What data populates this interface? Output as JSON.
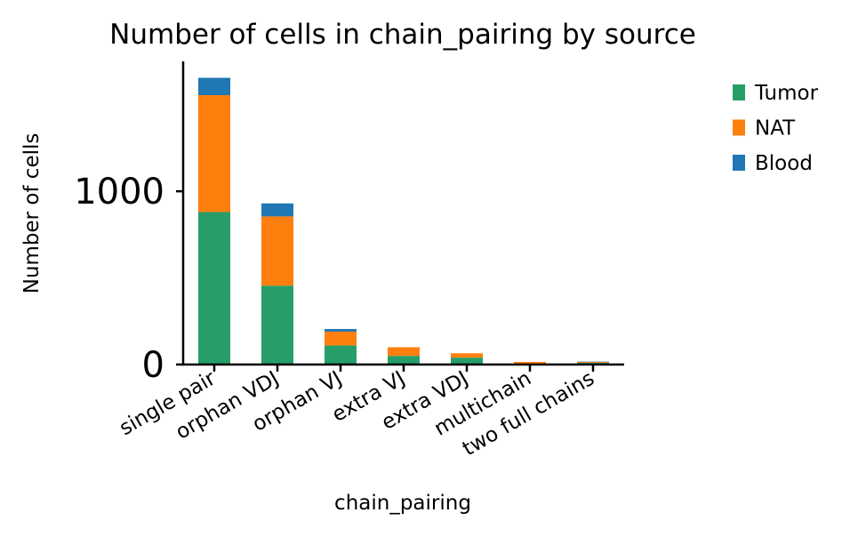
{
  "chart_data": {
    "type": "bar",
    "stacked": true,
    "title": "Number of cells in chain_pairing by source",
    "xlabel": "chain_pairing",
    "ylabel": "Number of cells",
    "ylim": [
      0,
      1750
    ],
    "yticks": [
      0,
      1000
    ],
    "categories": [
      "single pair",
      "orphan VDJ",
      "orphan VJ",
      "extra VJ",
      "extra VDJ",
      "multichain",
      "two full chains"
    ],
    "series": [
      {
        "name": "Tumor",
        "color": "#279e68",
        "values": [
          880,
          455,
          110,
          50,
          40,
          5,
          10
        ]
      },
      {
        "name": "NAT",
        "color": "#ff7f0e",
        "values": [
          675,
          400,
          80,
          50,
          25,
          10,
          5
        ]
      },
      {
        "name": "Blood",
        "color": "#1f77b4",
        "values": [
          100,
          75,
          15,
          0,
          0,
          0,
          2
        ]
      }
    ],
    "legend": {
      "placement": "right",
      "order": [
        "Tumor",
        "NAT",
        "Blood"
      ]
    },
    "grid": false
  }
}
